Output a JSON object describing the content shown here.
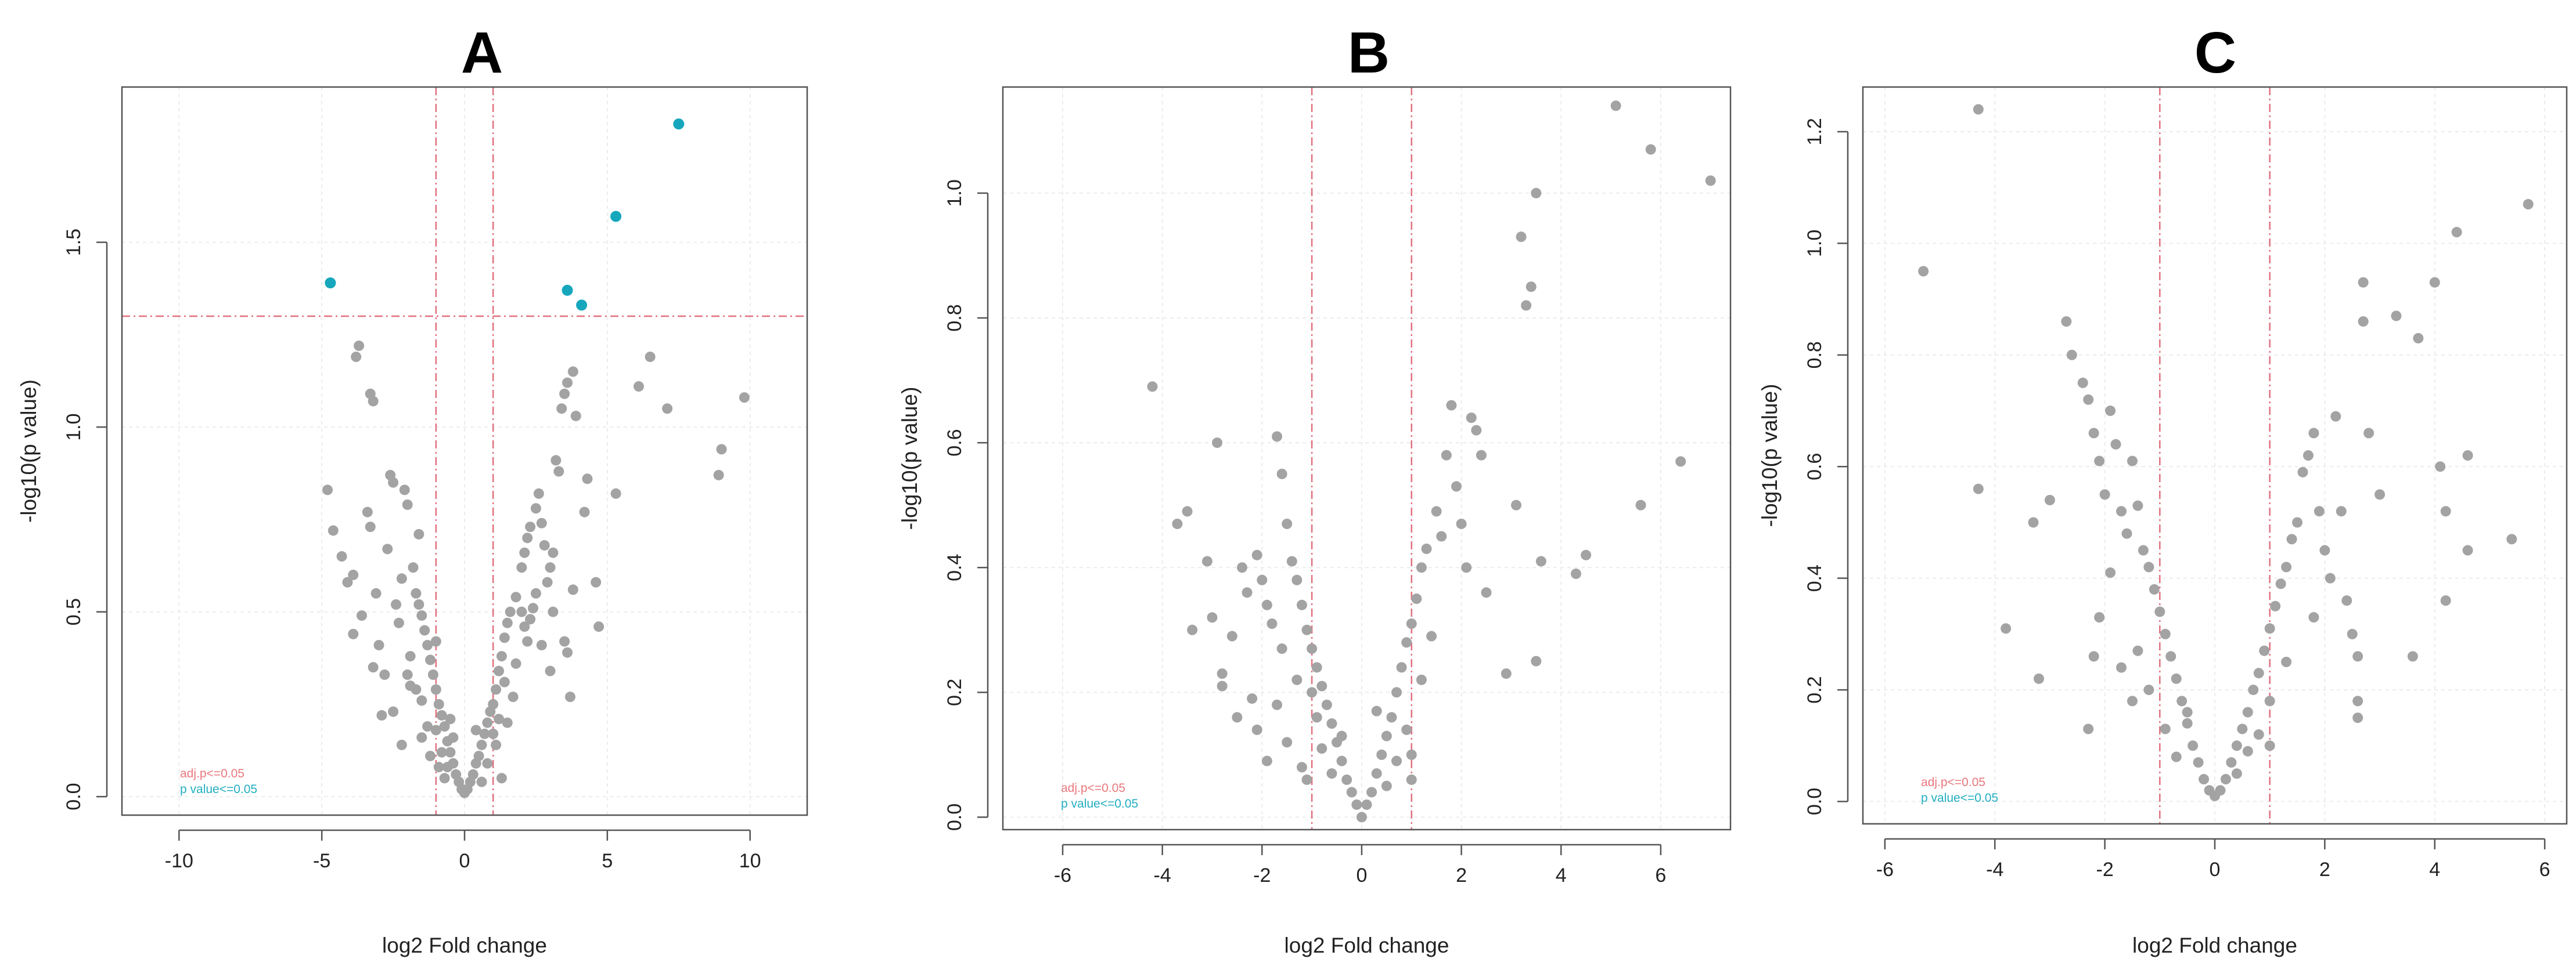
{
  "figure": {
    "panels": [
      "A",
      "B",
      "C"
    ]
  },
  "colors": {
    "nonsig": "#a3a3a3",
    "sig": "#16a7bd",
    "threshold": "#e0707e",
    "grid": "#ececec",
    "axis": "#555555",
    "adj_legend": "#e8787e",
    "pval_legend": "#22aec0"
  },
  "chart_data": [
    {
      "type": "scatter",
      "title": "A",
      "xlabel": "log2 Fold change",
      "ylabel": "-log10(p value)",
      "xlim": [
        -12,
        12
      ],
      "ylim": [
        -0.05,
        1.92
      ],
      "xticks": [
        -10,
        -5,
        0,
        5,
        10
      ],
      "yticks": [
        0.0,
        0.5,
        1.0,
        1.5
      ],
      "ytick_labels": [
        "0.0",
        "0.5",
        "1.0",
        "1.5"
      ],
      "grid": true,
      "fc_threshold": [
        -1,
        1
      ],
      "p_threshold": 1.3,
      "legend": {
        "position": "bottom-left",
        "entries": [
          "adj.p<=0.05",
          "p value<=0.05"
        ]
      },
      "significant_points": [
        [
          -4.7,
          1.39
        ],
        [
          3.6,
          1.37
        ],
        [
          4.1,
          1.33
        ],
        [
          5.3,
          1.57
        ],
        [
          7.5,
          1.82
        ]
      ],
      "nonsignificant_points": [
        [
          -3.7,
          1.22
        ],
        [
          -3.8,
          1.19
        ],
        [
          -3.3,
          1.09
        ],
        [
          -3.2,
          1.07
        ],
        [
          -4.8,
          0.83
        ],
        [
          -4.6,
          0.72
        ],
        [
          -4.3,
          0.65
        ],
        [
          -4.1,
          0.58
        ],
        [
          -3.9,
          0.6
        ],
        [
          -3.6,
          0.49
        ],
        [
          -3.4,
          0.77
        ],
        [
          -3.3,
          0.73
        ],
        [
          -3.1,
          0.55
        ],
        [
          -3.0,
          0.41
        ],
        [
          -2.8,
          0.33
        ],
        [
          -2.9,
          0.22
        ],
        [
          -2.6,
          0.87
        ],
        [
          -2.5,
          0.85
        ],
        [
          -2.4,
          0.52
        ],
        [
          -2.3,
          0.47
        ],
        [
          -2.1,
          0.83
        ],
        [
          -2.0,
          0.79
        ],
        [
          -2.2,
          0.59
        ],
        [
          -1.9,
          0.38
        ],
        [
          -1.8,
          0.62
        ],
        [
          -1.7,
          0.55
        ],
        [
          -1.6,
          0.52
        ],
        [
          -1.5,
          0.49
        ],
        [
          -1.4,
          0.45
        ],
        [
          -1.3,
          0.41
        ],
        [
          -1.2,
          0.37
        ],
        [
          -1.1,
          0.33
        ],
        [
          -2.2,
          0.14
        ],
        [
          -2.0,
          0.33
        ],
        [
          -1.9,
          0.3
        ],
        [
          -1.5,
          0.26
        ],
        [
          -1.0,
          0.29
        ],
        [
          -0.9,
          0.25
        ],
        [
          -0.8,
          0.22
        ],
        [
          -0.7,
          0.19
        ],
        [
          -0.6,
          0.15
        ],
        [
          -0.5,
          0.12
        ],
        [
          -0.4,
          0.09
        ],
        [
          -0.3,
          0.06
        ],
        [
          -0.2,
          0.04
        ],
        [
          -0.1,
          0.02
        ],
        [
          0.0,
          0.01
        ],
        [
          0.1,
          0.02
        ],
        [
          0.2,
          0.04
        ],
        [
          0.3,
          0.06
        ],
        [
          0.4,
          0.09
        ],
        [
          0.5,
          0.11
        ],
        [
          0.6,
          0.14
        ],
        [
          0.7,
          0.17
        ],
        [
          0.8,
          0.2
        ],
        [
          0.9,
          0.23
        ],
        [
          -0.8,
          0.12
        ],
        [
          -0.6,
          0.08
        ],
        [
          -0.4,
          0.16
        ],
        [
          -1.0,
          0.18
        ],
        [
          -0.9,
          0.08
        ],
        [
          -0.7,
          0.05
        ],
        [
          -0.5,
          0.21
        ],
        [
          0.4,
          0.18
        ],
        [
          0.6,
          0.04
        ],
        [
          0.8,
          0.09
        ],
        [
          1.0,
          0.25
        ],
        [
          1.1,
          0.14
        ],
        [
          1.2,
          0.21
        ],
        [
          1.3,
          0.05
        ],
        [
          1.4,
          0.31
        ],
        [
          -1.2,
          0.11
        ],
        [
          -1.3,
          0.19
        ],
        [
          -1.0,
          0.42
        ],
        [
          1.0,
          0.17
        ],
        [
          1.1,
          0.29
        ],
        [
          1.2,
          0.34
        ],
        [
          1.3,
          0.38
        ],
        [
          1.4,
          0.43
        ],
        [
          1.5,
          0.47
        ],
        [
          1.6,
          0.5
        ],
        [
          1.8,
          0.54
        ],
        [
          2.0,
          0.5
        ],
        [
          2.1,
          0.46
        ],
        [
          2.2,
          0.42
        ],
        [
          2.3,
          0.48
        ],
        [
          2.4,
          0.51
        ],
        [
          2.5,
          0.55
        ],
        [
          1.8,
          0.36
        ],
        [
          2.0,
          0.62
        ],
        [
          2.1,
          0.66
        ],
        [
          2.2,
          0.7
        ],
        [
          2.3,
          0.73
        ],
        [
          2.5,
          0.78
        ],
        [
          2.6,
          0.82
        ],
        [
          2.7,
          0.74
        ],
        [
          2.8,
          0.68
        ],
        [
          2.9,
          0.58
        ],
        [
          3.0,
          0.62
        ],
        [
          3.1,
          0.66
        ],
        [
          3.2,
          0.91
        ],
        [
          3.3,
          0.88
        ],
        [
          3.4,
          1.05
        ],
        [
          3.5,
          1.09
        ],
        [
          3.6,
          1.12
        ],
        [
          3.8,
          1.15
        ],
        [
          3.9,
          1.03
        ],
        [
          3.5,
          0.42
        ],
        [
          3.6,
          0.39
        ],
        [
          3.7,
          0.27
        ],
        [
          3.8,
          0.56
        ],
        [
          4.2,
          0.77
        ],
        [
          4.3,
          0.86
        ],
        [
          4.6,
          0.58
        ],
        [
          4.7,
          0.46
        ],
        [
          5.3,
          0.82
        ],
        [
          6.1,
          1.11
        ],
        [
          6.5,
          1.19
        ],
        [
          7.1,
          1.05
        ],
        [
          9.0,
          0.94
        ],
        [
          8.9,
          0.87
        ],
        [
          9.8,
          1.08
        ],
        [
          1.7,
          0.27
        ],
        [
          1.5,
          0.2
        ],
        [
          -1.5,
          0.16
        ],
        [
          -1.7,
          0.29
        ],
        [
          -2.5,
          0.23
        ],
        [
          -3.2,
          0.35
        ],
        [
          2.7,
          0.41
        ],
        [
          3.0,
          0.34
        ],
        [
          3.1,
          0.5
        ],
        [
          -1.6,
          0.71
        ],
        [
          -2.7,
          0.67
        ],
        [
          -3.9,
          0.44
        ]
      ]
    },
    {
      "type": "scatter",
      "title": "B",
      "xlabel": "log2 Fold change",
      "ylabel": "-log10(p value)",
      "xlim": [
        -7.2,
        7.4
      ],
      "ylim": [
        -0.02,
        1.17
      ],
      "xticks": [
        -6,
        -4,
        -2,
        0,
        2,
        4,
        6
      ],
      "yticks": [
        0.0,
        0.2,
        0.4,
        0.6,
        0.8,
        1.0
      ],
      "ytick_labels": [
        "0.0",
        "0.2",
        "0.4",
        "0.6",
        "0.8",
        "1.0"
      ],
      "grid": true,
      "fc_threshold": [
        -1,
        1
      ],
      "p_threshold": null,
      "legend": {
        "position": "bottom-left",
        "entries": [
          "adj.p<=0.05",
          "p value<=0.05"
        ]
      },
      "significant_points": [],
      "nonsignificant_points": [
        [
          -4.2,
          0.69
        ],
        [
          -3.7,
          0.47
        ],
        [
          -3.5,
          0.49
        ],
        [
          -3.4,
          0.3
        ],
        [
          -3.1,
          0.41
        ],
        [
          -3.0,
          0.32
        ],
        [
          -2.9,
          0.6
        ],
        [
          -2.8,
          0.23
        ],
        [
          -2.6,
          0.29
        ],
        [
          -2.5,
          0.16
        ],
        [
          -2.4,
          0.4
        ],
        [
          -2.3,
          0.36
        ],
        [
          -2.1,
          0.42
        ],
        [
          -2.0,
          0.38
        ],
        [
          -1.9,
          0.34
        ],
        [
          -1.8,
          0.31
        ],
        [
          -1.7,
          0.61
        ],
        [
          -1.6,
          0.55
        ],
        [
          -1.5,
          0.47
        ],
        [
          -1.4,
          0.41
        ],
        [
          -1.3,
          0.38
        ],
        [
          -1.2,
          0.34
        ],
        [
          -1.1,
          0.3
        ],
        [
          -1.0,
          0.27
        ],
        [
          -2.1,
          0.14
        ],
        [
          -1.9,
          0.09
        ],
        [
          -1.7,
          0.18
        ],
        [
          -1.5,
          0.12
        ],
        [
          -1.3,
          0.22
        ],
        [
          -1.1,
          0.06
        ],
        [
          -1.0,
          0.2
        ],
        [
          -0.9,
          0.24
        ],
        [
          -0.8,
          0.21
        ],
        [
          -0.7,
          0.18
        ],
        [
          -0.6,
          0.15
        ],
        [
          -0.5,
          0.12
        ],
        [
          -0.4,
          0.09
        ],
        [
          -0.3,
          0.06
        ],
        [
          -0.2,
          0.04
        ],
        [
          -0.1,
          0.02
        ],
        [
          0.0,
          0.0
        ],
        [
          0.1,
          0.02
        ],
        [
          0.2,
          0.04
        ],
        [
          0.3,
          0.07
        ],
        [
          0.4,
          0.1
        ],
        [
          0.5,
          0.13
        ],
        [
          0.6,
          0.16
        ],
        [
          0.7,
          0.2
        ],
        [
          0.8,
          0.24
        ],
        [
          0.9,
          0.28
        ],
        [
          1.0,
          0.31
        ],
        [
          -0.8,
          0.11
        ],
        [
          -0.6,
          0.07
        ],
        [
          -0.4,
          0.13
        ],
        [
          0.5,
          0.05
        ],
        [
          0.7,
          0.09
        ],
        [
          0.9,
          0.14
        ],
        [
          0.3,
          0.17
        ],
        [
          -0.9,
          0.16
        ],
        [
          1.0,
          0.1
        ],
        [
          1.0,
          0.06
        ],
        [
          1.1,
          0.35
        ],
        [
          1.2,
          0.4
        ],
        [
          1.3,
          0.43
        ],
        [
          1.5,
          0.49
        ],
        [
          1.6,
          0.45
        ],
        [
          1.7,
          0.58
        ],
        [
          1.8,
          0.66
        ],
        [
          1.9,
          0.53
        ],
        [
          2.0,
          0.47
        ],
        [
          2.1,
          0.4
        ],
        [
          2.2,
          0.64
        ],
        [
          2.3,
          0.62
        ],
        [
          2.4,
          0.58
        ],
        [
          2.5,
          0.36
        ],
        [
          2.9,
          0.23
        ],
        [
          3.1,
          0.5
        ],
        [
          3.2,
          0.93
        ],
        [
          3.3,
          0.82
        ],
        [
          3.4,
          0.85
        ],
        [
          3.5,
          1.0
        ],
        [
          3.6,
          0.41
        ],
        [
          3.5,
          0.25
        ],
        [
          4.3,
          0.39
        ],
        [
          4.5,
          0.42
        ],
        [
          5.1,
          1.14
        ],
        [
          5.6,
          0.5
        ],
        [
          5.8,
          1.07
        ],
        [
          6.4,
          0.57
        ],
        [
          7.0,
          1.02
        ],
        [
          -2.8,
          0.21
        ],
        [
          -2.2,
          0.19
        ],
        [
          -1.6,
          0.27
        ],
        [
          -1.2,
          0.08
        ],
        [
          1.2,
          0.22
        ],
        [
          1.4,
          0.29
        ]
      ]
    },
    {
      "type": "scatter",
      "title": "C",
      "xlabel": "log2 Fold change",
      "ylabel": "-log10(p value)",
      "xlim": [
        -6.4,
        6.4
      ],
      "ylim": [
        -0.04,
        1.28
      ],
      "xticks": [
        -6,
        -4,
        -2,
        0,
        2,
        4,
        6
      ],
      "yticks": [
        0.0,
        0.2,
        0.4,
        0.6,
        0.8,
        1.0,
        1.2
      ],
      "ytick_labels": [
        "0.0",
        "0.2",
        "0.4",
        "0.6",
        "0.8",
        "1.0",
        "1.2"
      ],
      "grid": true,
      "fc_threshold": [
        -1,
        1
      ],
      "p_threshold": null,
      "legend": {
        "position": "bottom-left",
        "entries": [
          "adj.p<=0.05",
          "p value<=0.05"
        ]
      },
      "significant_points": [],
      "nonsignificant_points": [
        [
          -5.3,
          0.95
        ],
        [
          -4.3,
          1.24
        ],
        [
          -4.3,
          0.56
        ],
        [
          -3.8,
          0.31
        ],
        [
          -3.3,
          0.5
        ],
        [
          -3.2,
          0.22
        ],
        [
          -3.0,
          0.54
        ],
        [
          -2.7,
          0.86
        ],
        [
          -2.6,
          0.8
        ],
        [
          -2.4,
          0.75
        ],
        [
          -2.3,
          0.72
        ],
        [
          -2.2,
          0.66
        ],
        [
          -2.1,
          0.61
        ],
        [
          -2.0,
          0.55
        ],
        [
          -2.3,
          0.13
        ],
        [
          -2.2,
          0.26
        ],
        [
          -2.1,
          0.33
        ],
        [
          -1.9,
          0.7
        ],
        [
          -1.8,
          0.64
        ],
        [
          -1.7,
          0.52
        ],
        [
          -1.6,
          0.48
        ],
        [
          -1.5,
          0.61
        ],
        [
          -1.4,
          0.53
        ],
        [
          -1.3,
          0.45
        ],
        [
          -1.2,
          0.42
        ],
        [
          -1.1,
          0.38
        ],
        [
          -1.0,
          0.34
        ],
        [
          -1.5,
          0.18
        ],
        [
          -1.4,
          0.27
        ],
        [
          -1.9,
          0.41
        ],
        [
          -1.7,
          0.24
        ],
        [
          -0.9,
          0.3
        ],
        [
          -0.8,
          0.26
        ],
        [
          -0.7,
          0.22
        ],
        [
          -0.6,
          0.18
        ],
        [
          -0.5,
          0.14
        ],
        [
          -0.4,
          0.1
        ],
        [
          -0.3,
          0.07
        ],
        [
          -0.2,
          0.04
        ],
        [
          -0.1,
          0.02
        ],
        [
          0.0,
          0.01
        ],
        [
          0.1,
          0.02
        ],
        [
          0.2,
          0.04
        ],
        [
          0.3,
          0.07
        ],
        [
          0.4,
          0.1
        ],
        [
          0.5,
          0.13
        ],
        [
          0.6,
          0.16
        ],
        [
          0.7,
          0.2
        ],
        [
          0.8,
          0.23
        ],
        [
          0.9,
          0.27
        ],
        [
          1.0,
          0.31
        ],
        [
          -0.9,
          0.13
        ],
        [
          -0.7,
          0.08
        ],
        [
          -0.5,
          0.16
        ],
        [
          0.4,
          0.05
        ],
        [
          0.6,
          0.09
        ],
        [
          0.8,
          0.12
        ],
        [
          1.0,
          0.18
        ],
        [
          1.0,
          0.1
        ],
        [
          1.1,
          0.35
        ],
        [
          1.2,
          0.39
        ],
        [
          1.3,
          0.42
        ],
        [
          1.4,
          0.47
        ],
        [
          1.5,
          0.5
        ],
        [
          1.6,
          0.59
        ],
        [
          1.7,
          0.62
        ],
        [
          1.8,
          0.66
        ],
        [
          1.9,
          0.52
        ],
        [
          2.0,
          0.45
        ],
        [
          2.1,
          0.4
        ],
        [
          2.2,
          0.69
        ],
        [
          2.3,
          0.52
        ],
        [
          2.4,
          0.36
        ],
        [
          2.5,
          0.3
        ],
        [
          2.6,
          0.15
        ],
        [
          2.6,
          0.18
        ],
        [
          2.6,
          0.26
        ],
        [
          2.7,
          0.86
        ],
        [
          2.7,
          0.93
        ],
        [
          2.8,
          0.66
        ],
        [
          3.0,
          0.55
        ],
        [
          3.3,
          0.87
        ],
        [
          3.6,
          0.26
        ],
        [
          3.7,
          0.83
        ],
        [
          4.0,
          0.93
        ],
        [
          4.1,
          0.6
        ],
        [
          4.2,
          0.36
        ],
        [
          4.2,
          0.52
        ],
        [
          4.4,
          1.02
        ],
        [
          4.6,
          0.62
        ],
        [
          4.6,
          0.45
        ],
        [
          5.4,
          0.47
        ],
        [
          5.7,
          1.07
        ],
        [
          -1.2,
          0.2
        ],
        [
          1.3,
          0.25
        ],
        [
          1.8,
          0.33
        ]
      ]
    }
  ]
}
